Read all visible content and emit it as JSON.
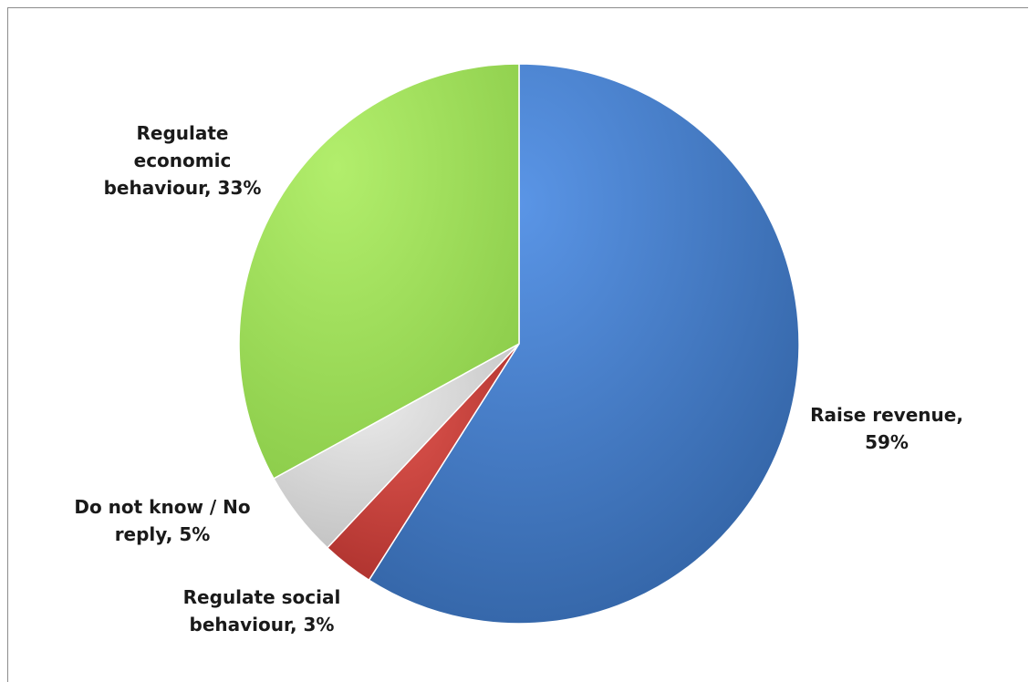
{
  "chart_data": {
    "type": "pie",
    "slices": [
      {
        "label": "Raise revenue",
        "value": 59,
        "value_text": "59%",
        "color": "#3f78c9"
      },
      {
        "label": "Regulate social behaviour",
        "value": 3,
        "value_text": "3%",
        "color": "#c23b35"
      },
      {
        "label": "Do not know / No reply",
        "value": 5,
        "value_text": "5%",
        "color": "#d4d4d4"
      },
      {
        "label": "Regulate economic behaviour",
        "value": 33,
        "value_text": "33%",
        "color": "#9bdc55"
      }
    ],
    "label_lines": {
      "raise_revenue": [
        "Raise revenue,",
        "59%"
      ],
      "regulate_social": [
        "Regulate social",
        "behaviour, 3%"
      ],
      "do_not_know": [
        "Do not know / No",
        "reply, 5%"
      ],
      "regulate_economic": [
        "Regulate",
        "economic",
        "behaviour, 33%"
      ]
    }
  }
}
